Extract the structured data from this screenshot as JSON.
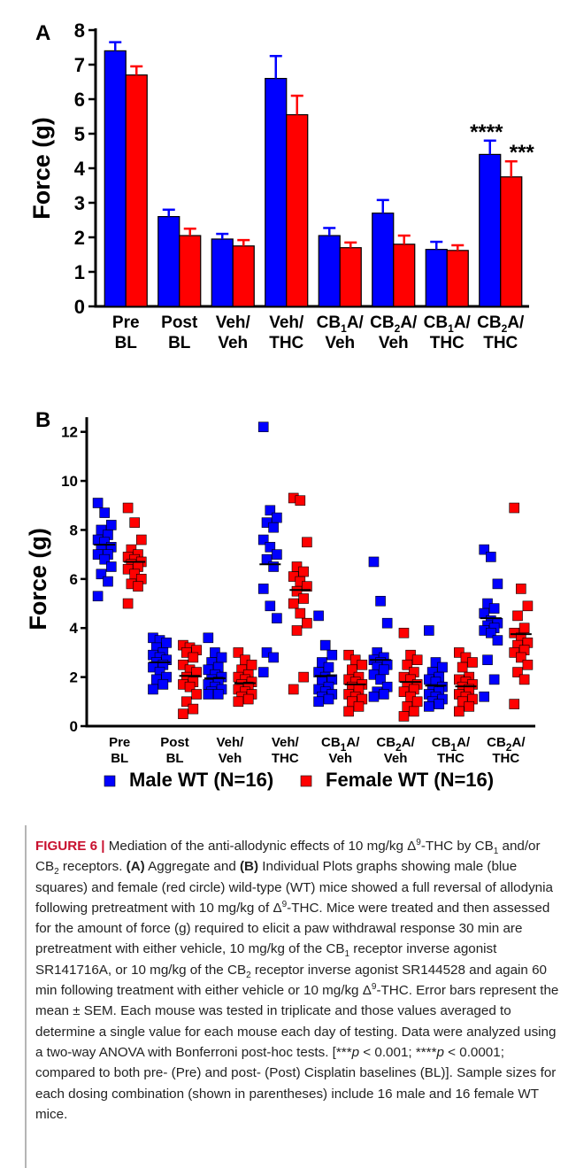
{
  "chart_data": [
    {
      "type": "bar",
      "panel": "A",
      "ylabel": "Force (g)",
      "ylim": [
        0,
        8
      ],
      "yticks": [
        "0",
        "1",
        "2",
        "3",
        "4",
        "5",
        "6",
        "7",
        "8"
      ],
      "categories": [
        [
          "Pre",
          "BL"
        ],
        [
          "Post",
          "BL"
        ],
        [
          "Veh/",
          "Veh"
        ],
        [
          "Veh/",
          "THC"
        ],
        [
          "CB1A/",
          "Veh"
        ],
        [
          "CB2A/",
          "Veh"
        ],
        [
          "CB1A/",
          "THC"
        ],
        [
          "CB2A/",
          "THC"
        ]
      ],
      "series": [
        {
          "color": "#0000ff",
          "values": [
            7.4,
            2.6,
            1.95,
            6.6,
            2.05,
            2.7,
            1.65,
            4.4
          ],
          "errors": [
            0.25,
            0.2,
            0.15,
            0.65,
            0.22,
            0.38,
            0.22,
            0.4
          ]
        },
        {
          "color": "#ff0000",
          "values": [
            6.7,
            2.05,
            1.75,
            5.55,
            1.7,
            1.8,
            1.62,
            3.75
          ],
          "errors": [
            0.25,
            0.2,
            0.17,
            0.55,
            0.15,
            0.25,
            0.15,
            0.45
          ]
        }
      ],
      "annotations": [
        {
          "category": 7,
          "series": 0,
          "text": "****"
        },
        {
          "category": 7,
          "series": 1,
          "text": "***"
        }
      ]
    },
    {
      "type": "scatter",
      "panel": "B",
      "ylabel": "Force (g)",
      "ylim": [
        0,
        13
      ],
      "yticks": [
        "0",
        "2",
        "4",
        "6",
        "8",
        "10",
        "12"
      ],
      "categories": [
        [
          "Pre",
          "BL"
        ],
        [
          "Post",
          "BL"
        ],
        [
          "Veh/",
          "Veh"
        ],
        [
          "Veh/",
          "THC"
        ],
        [
          "CB1A/",
          "Veh"
        ],
        [
          "CB2A/",
          "Veh"
        ],
        [
          "CB1A/",
          "THC"
        ],
        [
          "CB2A/",
          "THC"
        ]
      ],
      "legend_position": "bottom",
      "series": [
        {
          "name": "Male WT (N=16)",
          "color": "#0000ff",
          "means": [
            7.4,
            2.6,
            1.95,
            6.6,
            2.05,
            2.7,
            1.65,
            4.4
          ],
          "points": [
            [
              9.1,
              8.7,
              8.2,
              8.0,
              7.8,
              7.6,
              7.5,
              7.3,
              7.2,
              7.0,
              7.0,
              6.8,
              6.5,
              6.2,
              5.9,
              5.3
            ],
            [
              3.6,
              3.5,
              3.4,
              3.2,
              3.0,
              2.9,
              2.8,
              2.7,
              2.6,
              2.5,
              2.4,
              2.2,
              2.0,
              1.9,
              1.7,
              1.5
            ],
            [
              3.6,
              3.0,
              2.8,
              2.6,
              2.4,
              2.3,
              2.1,
              2.0,
              1.9,
              1.8,
              1.7,
              1.6,
              1.5,
              1.4,
              1.3,
              1.3
            ],
            [
              12.2,
              8.8,
              8.5,
              8.3,
              8.1,
              7.6,
              7.3,
              7.0,
              6.8,
              6.5,
              5.6,
              4.9,
              4.4,
              3.0,
              2.8,
              2.2
            ],
            [
              4.5,
              3.3,
              2.9,
              2.6,
              2.4,
              2.2,
              2.0,
              1.9,
              1.8,
              1.6,
              1.5,
              1.4,
              1.3,
              1.2,
              1.1,
              1.0
            ],
            [
              6.7,
              5.1,
              4.2,
              3.0,
              2.8,
              2.7,
              2.6,
              2.5,
              2.4,
              2.3,
              2.1,
              1.9,
              1.6,
              1.4,
              1.3,
              1.2
            ],
            [
              3.9,
              2.6,
              2.4,
              2.2,
              2.0,
              1.9,
              1.8,
              1.6,
              1.5,
              1.4,
              1.3,
              1.2,
              1.1,
              1.0,
              0.9,
              0.8
            ],
            [
              7.2,
              6.9,
              5.8,
              5.0,
              4.8,
              4.6,
              4.3,
              4.2,
              4.1,
              4.0,
              3.9,
              3.8,
              3.5,
              2.7,
              1.9,
              1.2
            ]
          ]
        },
        {
          "name": "Female WT (N=16)",
          "color": "#ff0000",
          "means": [
            6.7,
            2.05,
            1.75,
            5.55,
            1.7,
            1.8,
            1.62,
            3.75
          ],
          "points": [
            [
              8.9,
              8.3,
              7.6,
              7.2,
              7.0,
              6.9,
              6.8,
              6.7,
              6.6,
              6.5,
              6.4,
              6.2,
              6.0,
              5.8,
              5.7,
              5.0
            ],
            [
              3.3,
              3.2,
              3.1,
              3.0,
              2.8,
              2.5,
              2.3,
              2.2,
              2.0,
              1.8,
              1.7,
              1.6,
              1.3,
              1.0,
              0.7,
              0.5
            ],
            [
              3.0,
              2.7,
              2.5,
              2.3,
              2.1,
              2.0,
              1.9,
              1.8,
              1.7,
              1.6,
              1.5,
              1.4,
              1.3,
              1.2,
              1.1,
              1.0
            ],
            [
              9.3,
              9.2,
              7.5,
              6.5,
              6.3,
              6.1,
              5.9,
              5.7,
              5.5,
              5.2,
              5.0,
              4.6,
              4.2,
              3.9,
              2.0,
              1.5
            ],
            [
              2.9,
              2.7,
              2.5,
              2.3,
              2.0,
              1.9,
              1.8,
              1.7,
              1.6,
              1.5,
              1.3,
              1.2,
              1.1,
              1.0,
              0.8,
              0.6
            ],
            [
              3.8,
              2.9,
              2.7,
              2.5,
              2.2,
              2.0,
              1.9,
              1.7,
              1.6,
              1.5,
              1.4,
              1.2,
              1.0,
              0.8,
              0.6,
              0.4
            ],
            [
              3.0,
              2.8,
              2.6,
              2.4,
              2.0,
              1.9,
              1.8,
              1.7,
              1.6,
              1.5,
              1.3,
              1.2,
              1.1,
              1.0,
              0.8,
              0.6
            ],
            [
              8.9,
              5.6,
              4.9,
              4.5,
              4.0,
              3.8,
              3.6,
              3.4,
              3.3,
              3.1,
              3.0,
              2.8,
              2.5,
              2.2,
              1.9,
              0.9
            ]
          ]
        }
      ]
    }
  ],
  "panels": {
    "a_label": "A",
    "b_label": "B"
  },
  "caption": {
    "fig_label": "FIGURE 6 |",
    "segments": [
      {
        "text": " Mediation of the anti-allodynic effects of 10 mg/kg Δ"
      },
      {
        "text": "9",
        "sup": true
      },
      {
        "text": "-THC by CB"
      },
      {
        "text": "1",
        "sub": true
      },
      {
        "text": " and/or CB"
      },
      {
        "text": "2",
        "sub": true
      },
      {
        "text": " receptors. "
      },
      {
        "text": "(A)",
        "bold": true
      },
      {
        "text": " Aggregate and "
      },
      {
        "text": "(B)",
        "bold": true
      },
      {
        "text": " Individual Plots graphs showing male (blue squares) and female (red circle) wild-type (WT) mice showed a full reversal of allodynia following pretreatment with 10 mg/kg of Δ"
      },
      {
        "text": "9",
        "sup": true
      },
      {
        "text": "-THC. Mice were treated and then assessed for the amount of force (g) required to elicit a paw withdrawal response 30 min are pretreatment with either vehicle, 10 mg/kg of the CB"
      },
      {
        "text": "1",
        "sub": true
      },
      {
        "text": " receptor inverse agonist SR141716A, or 10 mg/kg of the CB"
      },
      {
        "text": "2",
        "sub": true
      },
      {
        "text": " receptor inverse agonist SR144528 and again 60 min following treatment with either vehicle or 10 mg/kg Δ"
      },
      {
        "text": "9",
        "sup": true
      },
      {
        "text": "-THC. Error bars represent the mean ± SEM. Each mouse was tested in triplicate and those values averaged to determine a single value for each mouse each day of testing. Data were analyzed using a two-way ANOVA with Bonferroni post-hoc tests. [***"
      },
      {
        "text": "p",
        "italic": true
      },
      {
        "text": " < 0.001; ****"
      },
      {
        "text": "p",
        "italic": true
      },
      {
        "text": " < 0.0001; compared to both pre- (Pre) and post- (Post) Cisplatin baselines (BL)]. Sample sizes for each dosing combination (shown in parentheses) include 16 male and 16 female WT mice."
      }
    ]
  }
}
